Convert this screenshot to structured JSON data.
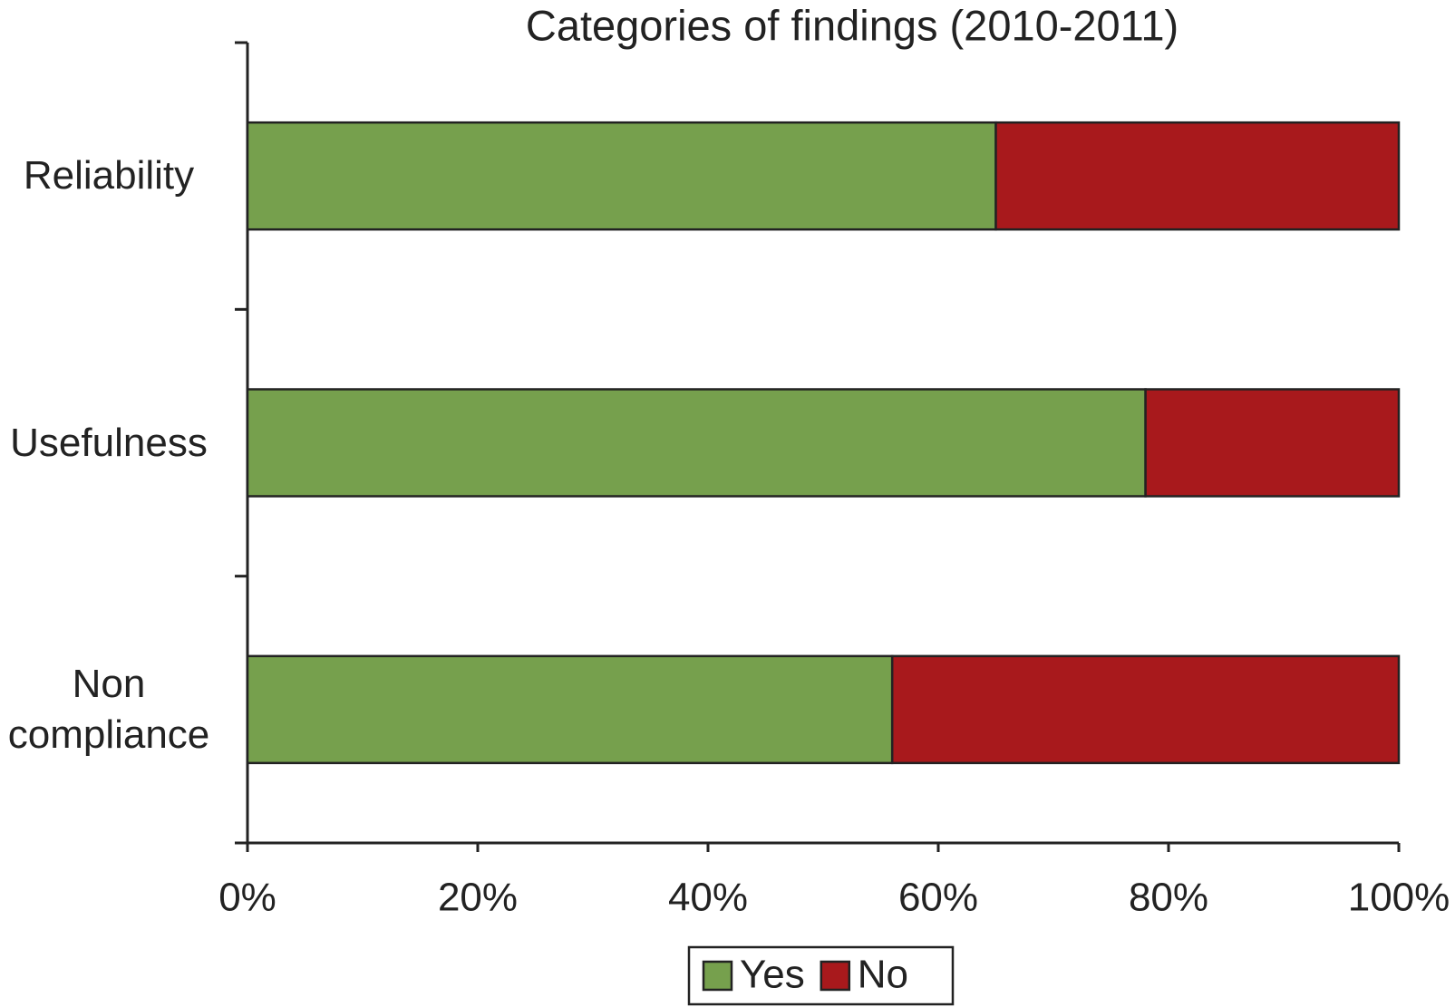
{
  "chart_data": {
    "type": "stacked-bar-horizontal",
    "title": "Categories of findings (2010-2011)",
    "categories": [
      "Reliability",
      "Usefulness",
      "Non compliance"
    ],
    "series": [
      {
        "name": "Yes",
        "color": "#76a04d",
        "values": [
          65,
          78,
          56
        ]
      },
      {
        "name": "No",
        "color": "#a8191c",
        "values": [
          35,
          22,
          44
        ]
      }
    ],
    "xlim": [
      0,
      100
    ],
    "xticks": [
      {
        "value": 0,
        "label": "0%"
      },
      {
        "value": 20,
        "label": "20%"
      },
      {
        "value": 40,
        "label": "40%"
      },
      {
        "value": 60,
        "label": "60%"
      },
      {
        "value": 80,
        "label": "80%"
      },
      {
        "value": 100,
        "label": "100%"
      }
    ],
    "legend": "bottom"
  }
}
